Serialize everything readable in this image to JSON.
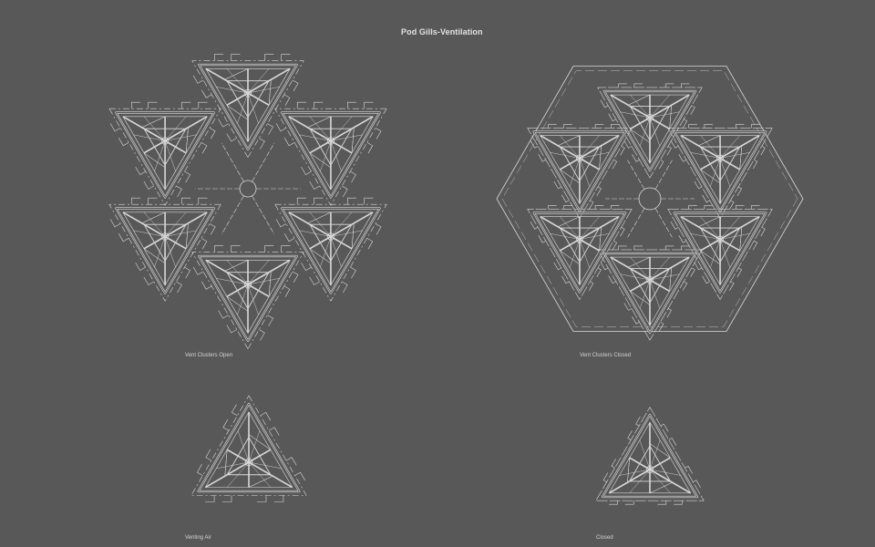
{
  "sheet": {
    "title": "Pod Gills-Ventilation",
    "colors": {
      "background": "#585858",
      "line": "#d9d9d9",
      "text": "#d4d4d4"
    }
  },
  "figures": [
    {
      "id": "open",
      "caption": "Vent Clusters Open",
      "state": "open",
      "count": 6
    },
    {
      "id": "closed",
      "caption": "Vent Clusters Closed",
      "state": "closed",
      "count": 6
    },
    {
      "id": "venting",
      "caption": "Venting Air",
      "state": "open",
      "count": 1
    },
    {
      "id": "single-closed",
      "caption": "Closed",
      "state": "closed",
      "count": 1
    }
  ]
}
